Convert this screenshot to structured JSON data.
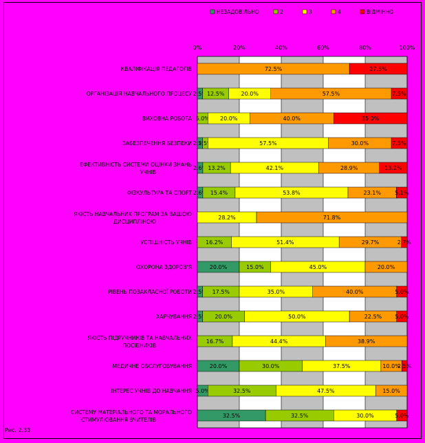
{
  "chart_data": {
    "type": "bar",
    "stacked": true,
    "orientation": "horizontal",
    "percent_stacked": true,
    "title": "",
    "xlabel": "",
    "ylabel": "",
    "xlim": [
      0,
      100
    ],
    "x_ticks": [
      "0%",
      "20%",
      "40%",
      "60%",
      "80%",
      "100%"
    ],
    "grid": true,
    "legend_position": "top",
    "categories": [
      "КВАЛІФІКАЦІЯ ПЕДАГОГІВ",
      "ОРГАНІЗАЦІЯ НАВЧАЛЬНОГО ПРОЦЕСУ",
      "ВИХОВНА РОБОТА",
      "ЗАБЕЗПЕЧЕННЯ БЕЗПЕКИ",
      "ЕФЕКТИВНІСТЬ СИСТЕМИ ОЦІНКИ ЗНАНЬ УЧНІВ",
      "ФІЗКУЛЬТУРА ТА СПОРТ",
      "ЯКІСТЬ НАВЧАЛЬНИХ ПРОГРАМ ЗА ВАШОЮ ДИСЦИПЛІНОЮ",
      "УСПІШНІСТЬ УЧНІВ",
      "ОХОРОНА ЗДОРОВ'Я",
      "РІВЕНЬ ПОЗАКЛАСНОЇ РОБОТИ",
      "ХАРЧУВАННЯ",
      "ЯКІСТЬ ПІДРУЧНИКІВ ТА НАВЧАЛЬНИХ ПОСІБНИКІВ",
      "МЕДИЧНЕ ОБСЛУГОВУВАННЯ",
      "ІНТЕРЕС УЧНІВ ДО НАВЧАННЯ",
      "СИСТЕМУ МАТЕРІАЛЬНОГО ТА МОРАЛЬНОГО СТИМУЛЮВАННЯ ВЧИТЕЛІВ"
    ],
    "series": [
      {
        "name": "НЕЗАДОВІЛЬНО",
        "color": "#339966",
        "values": [
          0,
          2.5,
          0,
          2.5,
          2.6,
          2.6,
          0,
          0,
          20.0,
          2.5,
          2.5,
          0,
          20.0,
          5.0,
          32.5
        ],
        "labels": [
          "",
          "2.5%",
          "",
          "2.5%",
          "2.6%",
          "2.6%",
          "",
          "",
          "20.0%",
          "2.5%",
          "2.5%",
          "",
          "20.0%",
          "5.0%",
          "32.5%"
        ]
      },
      {
        "name": "2",
        "color": "#99cc00",
        "values": [
          0,
          12.5,
          5.0,
          2.5,
          13.2,
          15.4,
          0,
          16.2,
          15.0,
          17.5,
          20.0,
          16.7,
          30.0,
          32.5,
          32.5
        ],
        "labels": [
          "",
          "12.5%",
          "5.0%",
          "2.5%",
          "13.2%",
          "15.4%",
          "",
          "16.2%",
          "15.0%",
          "17.5%",
          "20.0%",
          "16.7%",
          "30.0%",
          "32.5%",
          "32.5%"
        ]
      },
      {
        "name": "3",
        "color": "#ffff00",
        "values": [
          0,
          20.0,
          20.0,
          57.5,
          42.1,
          53.8,
          28.2,
          51.4,
          45.0,
          35.0,
          50.0,
          44.4,
          37.5,
          47.5,
          30.0
        ],
        "labels": [
          "",
          "20.0%",
          "20.0%",
          "57.5%",
          "42.1%",
          "53.8%",
          "28.2%",
          "51.4%",
          "45.0%",
          "35.0%",
          "50.0%",
          "44.4%",
          "37.5%",
          "47.5%",
          "30.0%"
        ]
      },
      {
        "name": "4",
        "color": "#ff9900",
        "values": [
          72.5,
          57.5,
          40.0,
          30.0,
          28.9,
          23.1,
          71.8,
          29.7,
          20.0,
          40.0,
          22.5,
          38.9,
          10.0,
          15.0,
          0
        ],
        "labels": [
          "72.5%",
          "57.5%",
          "40.0%",
          "30.0%",
          "28.9%",
          "23.1%",
          "71.8%",
          "29.7%",
          "20.0%",
          "40.0%",
          "22.5%",
          "38.9%",
          "10.0%",
          "15.0%",
          ""
        ]
      },
      {
        "name": "ВІДМІННО",
        "color": "#ff0000",
        "values": [
          27.5,
          7.5,
          35.0,
          7.5,
          13.2,
          5.1,
          0,
          2.7,
          0,
          5.0,
          5.0,
          0,
          2.5,
          0,
          5.0
        ],
        "labels": [
          "27.5%",
          "7.5%",
          "35.0%",
          "7.5%",
          "13.2%",
          "5.1%",
          "",
          "2.7%",
          "",
          "5.0%",
          "5.0%",
          "",
          "2.5%",
          "",
          "5.0%"
        ]
      }
    ]
  },
  "footnote": "Рис. 2.33"
}
